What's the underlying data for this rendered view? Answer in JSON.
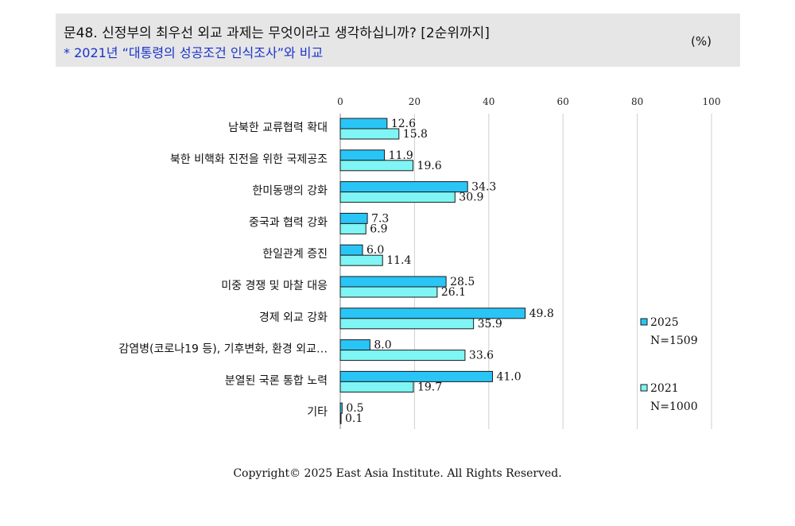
{
  "header": {
    "title": "문48. 신정부의 최우선 외교 과제는 무엇이라고 생각하십니까? [2순위까지]",
    "subtitle": "* 2021년 “대통령의 성공조건 인식조사”와 비교",
    "unit": "(%)"
  },
  "chart_data": {
    "type": "bar",
    "orientation": "horizontal",
    "categories": [
      "남북한 교류협력 확대",
      "북한 비핵화 진전을 위한 국제공조",
      "한미동맹의 강화",
      "중국과 협력 강화",
      "한일관계 증진",
      "미중 경쟁 및 마찰 대응",
      "경제 외교 강화",
      "감염병(코로나19 등), 기후변화, 환경 외교…",
      "분열된 국론 통합 노력",
      "기타"
    ],
    "value_labels": [
      [
        "12.6",
        "15.8"
      ],
      [
        "11.9",
        "19.6"
      ],
      [
        "34.3",
        "30.9"
      ],
      [
        "7.3",
        "6.9"
      ],
      [
        "6.0",
        "11.4"
      ],
      [
        "28.5",
        "26.1"
      ],
      [
        "49.8",
        "35.9"
      ],
      [
        "8.0",
        "33.6"
      ],
      [
        "41.0",
        "19.7"
      ],
      [
        "0.5",
        "0.1"
      ]
    ],
    "series": [
      {
        "name": "2025",
        "n_label": "N=1509",
        "color": "#29c5f6",
        "values": [
          12.6,
          11.9,
          34.3,
          7.3,
          6.0,
          28.5,
          49.8,
          8.0,
          41.0,
          0.5
        ]
      },
      {
        "name": "2021",
        "n_label": "N=1000",
        "color": "#7ff5f5",
        "values": [
          15.8,
          19.6,
          30.9,
          6.9,
          11.4,
          26.1,
          35.9,
          33.6,
          19.7,
          0.1
        ]
      }
    ],
    "xlim": [
      0,
      100
    ],
    "xticks": [
      "0",
      "20",
      "40",
      "60",
      "80",
      "100"
    ],
    "grid": true,
    "legend_position": "right"
  },
  "footer": {
    "copyright": "Copyright© 2025 East Asia Institute. All Rights Reserved."
  }
}
